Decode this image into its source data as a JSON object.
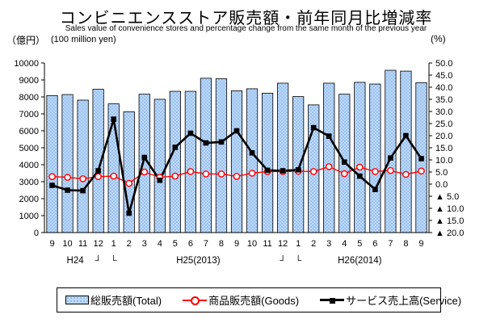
{
  "title": "コンビニエンスストア販売額・前年同月比増減率",
  "subtitle": "Sales value of convenience stores and percentage change from the  same month of the previous year",
  "axes": {
    "left_unit_jp": "（億円）",
    "left_unit_en": "(100 million yen)",
    "right_unit": "(%)",
    "left_tick_labels": [
      "0",
      "1000",
      "2000",
      "3000",
      "4000",
      "5000",
      "6000",
      "7000",
      "8000",
      "9000",
      "10000"
    ],
    "right_tick_labels_top_down": [
      "50.0",
      "45.0",
      "40.0",
      "35.0",
      "30.0",
      "25.0",
      "20.0",
      "15.0",
      "10.0",
      "5.0",
      "0.0",
      "▲ 5.0",
      "▲ 10.0",
      "▲ 15.0",
      "▲ 20.0"
    ]
  },
  "x_axis": {
    "separator_left": "┘",
    "separator_right": "└",
    "eras": [
      {
        "label": "H24",
        "start": 0,
        "count": 4
      },
      {
        "label": "H25(2013)",
        "start": 4,
        "count": 12
      },
      {
        "label": "H26(2014)",
        "start": 16,
        "count": 9
      }
    ]
  },
  "colors": {
    "bar_fill": "#BCD9FB",
    "bar_dot": "#6FA0DC",
    "bar_border": "#000000",
    "goods": "#FF0000",
    "service": "#000000",
    "axis": "#000000"
  },
  "chart_data": {
    "type": "bar",
    "note": "bars on left axis (100 million yen), two lines on right axis (% change YoY)",
    "categories": [
      "9",
      "10",
      "11",
      "12",
      "1",
      "2",
      "3",
      "4",
      "5",
      "6",
      "7",
      "8",
      "9",
      "10",
      "11",
      "12",
      "1",
      "2",
      "3",
      "4",
      "5",
      "6",
      "7",
      "8",
      "9"
    ],
    "left_ylim": [
      0,
      10000
    ],
    "left_step": 1000,
    "right_ylim": [
      -20,
      50
    ],
    "right_step": 5,
    "grid": false,
    "legend_position": "bottom",
    "series": [
      {
        "name": "総販売額(Total)",
        "type": "bar",
        "axis": "left",
        "values": [
          8080,
          8140,
          7810,
          8450,
          7590,
          7120,
          8160,
          7860,
          8330,
          8330,
          9100,
          9070,
          8360,
          8480,
          8220,
          8810,
          8020,
          7530,
          8810,
          8160,
          8860,
          8760,
          9570,
          9520,
          8840
        ]
      },
      {
        "name": "商品販売額(Goods)",
        "type": "line",
        "marker": "circle",
        "axis": "right",
        "values": [
          3.1,
          2.8,
          2.2,
          3.1,
          3.3,
          0.3,
          5.0,
          2.8,
          3.3,
          5.2,
          4.2,
          4.2,
          3.2,
          4.5,
          5.2,
          5.2,
          5.3,
          5.2,
          7.2,
          4.3,
          7.0,
          5.2,
          5.6,
          4.0,
          5.4
        ]
      },
      {
        "name": "サービス売上高(Service)",
        "type": "line",
        "marker": "square",
        "axis": "right",
        "values": [
          -0.5,
          -2.5,
          -2.7,
          5.5,
          26.8,
          -12.0,
          11.0,
          1.6,
          15.2,
          21.0,
          17.0,
          17.4,
          22.0,
          12.9,
          5.7,
          5.5,
          5.9,
          23.3,
          19.8,
          9.1,
          3.3,
          -2.2,
          10.8,
          20.0,
          10.5
        ]
      }
    ]
  }
}
